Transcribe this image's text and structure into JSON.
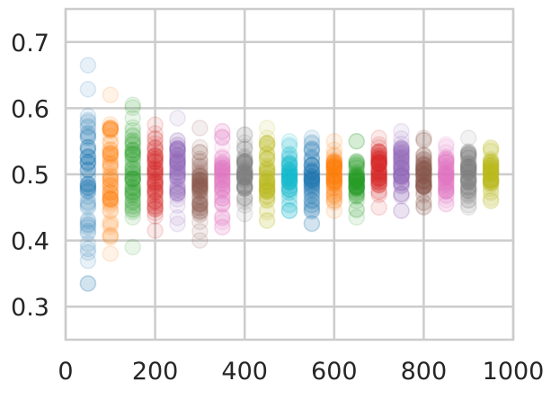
{
  "chart_data": {
    "type": "scatter",
    "title": "",
    "xlabel": "",
    "ylabel": "",
    "xlim": [
      0,
      1000
    ],
    "ylim": [
      0.25,
      0.75
    ],
    "xticks": [
      "0",
      "200",
      "400",
      "600",
      "800",
      "1000"
    ],
    "yticks": [
      "0.3",
      "0.4",
      "0.5",
      "0.6",
      "0.7"
    ],
    "grid": true,
    "marker_alpha": 0.1,
    "note": "Many semi-transparent points per x; spread listed as [min, max] of visible points",
    "series": [
      {
        "x": 50,
        "color": "#1f77b4",
        "y_range": [
          0.335,
          0.665
        ]
      },
      {
        "x": 100,
        "color": "#ff7f0e",
        "y_range": [
          0.38,
          0.62
        ]
      },
      {
        "x": 150,
        "color": "#2ca02c",
        "y_range": [
          0.39,
          0.605
        ]
      },
      {
        "x": 200,
        "color": "#d62728",
        "y_range": [
          0.415,
          0.575
        ]
      },
      {
        "x": 250,
        "color": "#9467bd",
        "y_range": [
          0.425,
          0.585
        ]
      },
      {
        "x": 300,
        "color": "#8c564b",
        "y_range": [
          0.4,
          0.57
        ]
      },
      {
        "x": 350,
        "color": "#e377c2",
        "y_range": [
          0.42,
          0.565
        ]
      },
      {
        "x": 400,
        "color": "#7f7f7f",
        "y_range": [
          0.44,
          0.56
        ]
      },
      {
        "x": 450,
        "color": "#bcbd22",
        "y_range": [
          0.43,
          0.57
        ]
      },
      {
        "x": 500,
        "color": "#17becf",
        "y_range": [
          0.445,
          0.55
        ]
      },
      {
        "x": 550,
        "color": "#1f77b4",
        "y_range": [
          0.425,
          0.555
        ]
      },
      {
        "x": 600,
        "color": "#ff7f0e",
        "y_range": [
          0.445,
          0.55
        ]
      },
      {
        "x": 650,
        "color": "#2ca02c",
        "y_range": [
          0.435,
          0.55
        ]
      },
      {
        "x": 700,
        "color": "#d62728",
        "y_range": [
          0.45,
          0.555
        ]
      },
      {
        "x": 750,
        "color": "#9467bd",
        "y_range": [
          0.445,
          0.565
        ]
      },
      {
        "x": 800,
        "color": "#8c564b",
        "y_range": [
          0.45,
          0.555
        ]
      },
      {
        "x": 850,
        "color": "#e377c2",
        "y_range": [
          0.455,
          0.545
        ]
      },
      {
        "x": 900,
        "color": "#7f7f7f",
        "y_range": [
          0.45,
          0.555
        ]
      },
      {
        "x": 950,
        "color": "#bcbd22",
        "y_range": [
          0.46,
          0.54
        ]
      }
    ]
  }
}
